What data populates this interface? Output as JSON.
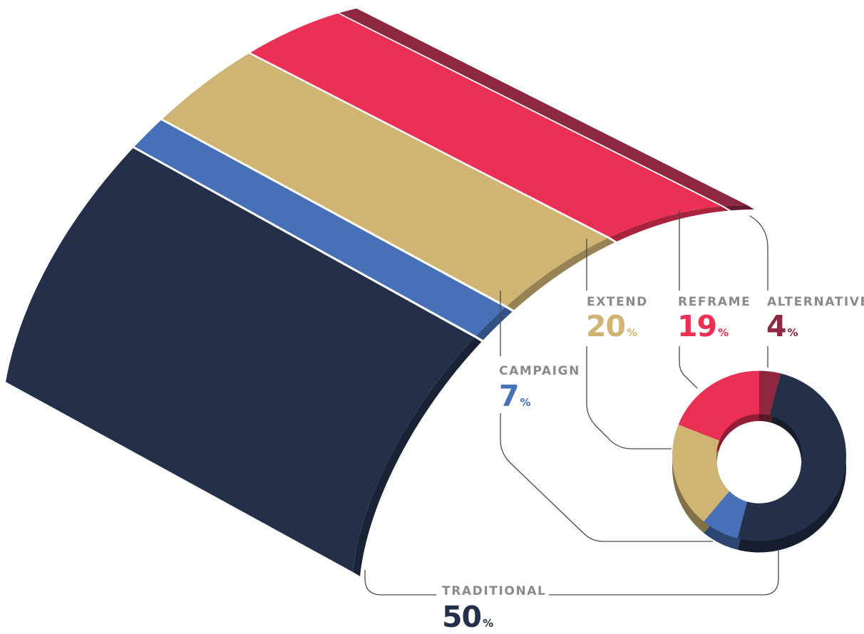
{
  "colors": {
    "traditional": "#242f49",
    "campaign": "#4870b8",
    "extend": "#d0b474",
    "reframe": "#ec3055",
    "alternative": "#8e2740",
    "leader": "#4a4a4a",
    "label": "#8a8a8c"
  },
  "chart_data": {
    "type": "pie",
    "variant": "donut",
    "title": "",
    "categories": [
      "TRADITIONAL",
      "CAMPAIGN",
      "EXTEND",
      "REFRAME",
      "ALTERNATIVE"
    ],
    "values": [
      50,
      7,
      20,
      19,
      4
    ],
    "unit": "%",
    "labels": [
      {
        "name": "TRADITIONAL",
        "value": "50",
        "unit": "%"
      },
      {
        "name": "CAMPAIGN",
        "value": "7",
        "unit": "%"
      },
      {
        "name": "EXTEND",
        "value": "20",
        "unit": "%"
      },
      {
        "name": "REFRAME",
        "value": "19",
        "unit": "%"
      },
      {
        "name": "ALTERNATIVE",
        "value": "4",
        "unit": "%"
      }
    ]
  }
}
